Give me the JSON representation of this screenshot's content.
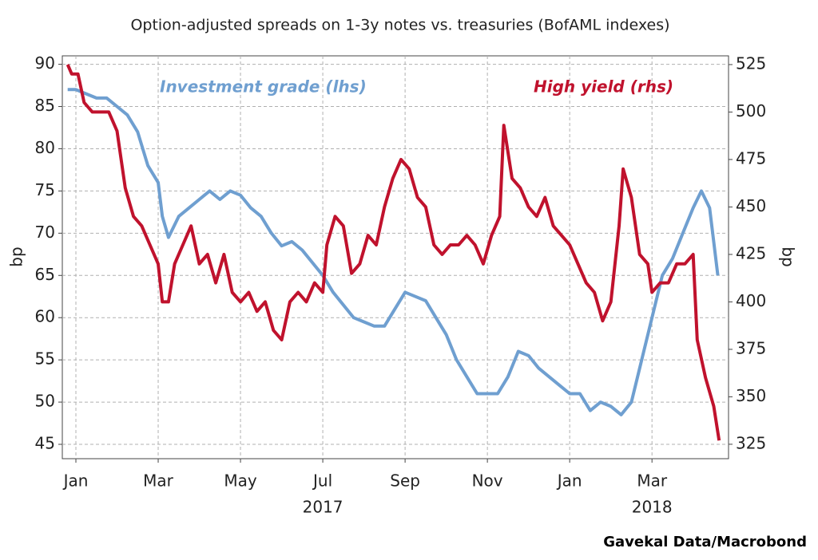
{
  "chart_data": {
    "type": "line",
    "title": "Option-adjusted spreads on 1-3y notes vs. treasuries (BofAML indexes)",
    "y_label": "bp",
    "y2_label": "bp",
    "source": "Gavekal Data/Macrobond",
    "grid": true,
    "xlim": [
      -0.33,
      15.86
    ],
    "xticks": [
      {
        "value": 0,
        "label": "Jan"
      },
      {
        "value": 2,
        "label": "Mar"
      },
      {
        "value": 4,
        "label": "May"
      },
      {
        "value": 6,
        "label": "Jul"
      },
      {
        "value": 8,
        "label": "Sep"
      },
      {
        "value": 10,
        "label": "Nov"
      },
      {
        "value": 12,
        "label": "Jan"
      },
      {
        "value": 14,
        "label": "Mar"
      }
    ],
    "x_year_labels": [
      {
        "value": 6,
        "label": "2017"
      },
      {
        "value": 14,
        "label": "2018"
      }
    ],
    "ylim": [
      43.3,
      91.0
    ],
    "yticks": [
      45,
      50,
      55,
      60,
      65,
      70,
      75,
      80,
      85,
      90
    ],
    "y2lim": [
      317.4,
      529.6
    ],
    "y2ticks": [
      325,
      350,
      375,
      400,
      425,
      450,
      475,
      500,
      525
    ],
    "series": [
      {
        "name": "Investment grade (lhs)",
        "color": "#6f9fd0",
        "axis": "y",
        "x": [
          -0.2,
          0,
          0.25,
          0.5,
          0.75,
          1,
          1.25,
          1.5,
          1.75,
          2,
          2.1,
          2.25,
          2.5,
          2.75,
          3,
          3.25,
          3.5,
          3.75,
          4,
          4.25,
          4.5,
          4.75,
          5,
          5.25,
          5.5,
          5.75,
          6,
          6.25,
          6.5,
          6.75,
          7,
          7.25,
          7.5,
          7.75,
          8,
          8.25,
          8.5,
          8.75,
          9,
          9.25,
          9.5,
          9.75,
          10,
          10.25,
          10.5,
          10.75,
          11,
          11.25,
          11.5,
          11.75,
          12,
          12.25,
          12.5,
          12.75,
          13,
          13.25,
          13.5,
          13.75,
          14,
          14.25,
          14.5,
          14.75,
          15,
          15.2,
          15.4,
          15.6
        ],
        "values": [
          87,
          87,
          86.5,
          86,
          86,
          85,
          84,
          82,
          78,
          76,
          72,
          69.5,
          72,
          73,
          74,
          75,
          74,
          75,
          74.5,
          73,
          72,
          70,
          68.5,
          69,
          68,
          66.5,
          65,
          63,
          61.5,
          60,
          59.5,
          59,
          59,
          61,
          63,
          62.5,
          62,
          60,
          58,
          55,
          53,
          51,
          51,
          51,
          53,
          56,
          55.5,
          54,
          53,
          52,
          51,
          51,
          49,
          50,
          49.5,
          48.5,
          50,
          55,
          60,
          65,
          67,
          70,
          73,
          75,
          73,
          65
        ]
      },
      {
        "name": "High yield (rhs)",
        "color": "#c0122d",
        "axis": "y2",
        "x": [
          -0.2,
          -0.1,
          0.05,
          0.2,
          0.4,
          0.6,
          0.8,
          1,
          1.2,
          1.4,
          1.6,
          1.8,
          2,
          2.1,
          2.25,
          2.4,
          2.6,
          2.8,
          3,
          3.2,
          3.4,
          3.6,
          3.8,
          4,
          4.2,
          4.4,
          4.6,
          4.8,
          5,
          5.2,
          5.4,
          5.6,
          5.8,
          6,
          6.1,
          6.3,
          6.5,
          6.7,
          6.9,
          7.1,
          7.3,
          7.5,
          7.7,
          7.9,
          8.1,
          8.3,
          8.5,
          8.7,
          8.9,
          9.1,
          9.3,
          9.5,
          9.7,
          9.9,
          10.1,
          10.3,
          10.4,
          10.6,
          10.8,
          11,
          11.2,
          11.4,
          11.6,
          11.8,
          12,
          12.2,
          12.4,
          12.6,
          12.8,
          13,
          13.2,
          13.3,
          13.5,
          13.7,
          13.9,
          14,
          14.2,
          14.4,
          14.6,
          14.8,
          15,
          15.1,
          15.3,
          15.5,
          15.63
        ],
        "values": [
          525,
          520,
          520,
          505,
          500,
          500,
          500,
          490,
          460,
          445,
          440,
          430,
          420,
          400,
          400,
          420,
          430,
          440,
          420,
          425,
          410,
          425,
          405,
          400,
          405,
          395,
          400,
          385,
          380,
          400,
          405,
          400,
          410,
          405,
          430,
          445,
          440,
          415,
          420,
          435,
          430,
          450,
          465,
          475,
          470,
          455,
          450,
          430,
          425,
          430,
          430,
          435,
          430,
          420,
          435,
          445,
          493,
          465,
          460,
          450,
          445,
          455,
          440,
          435,
          430,
          420,
          410,
          405,
          390,
          400,
          440,
          470,
          455,
          425,
          420,
          405,
          410,
          410,
          420,
          420,
          425,
          380,
          360,
          345,
          327
        ]
      }
    ]
  }
}
